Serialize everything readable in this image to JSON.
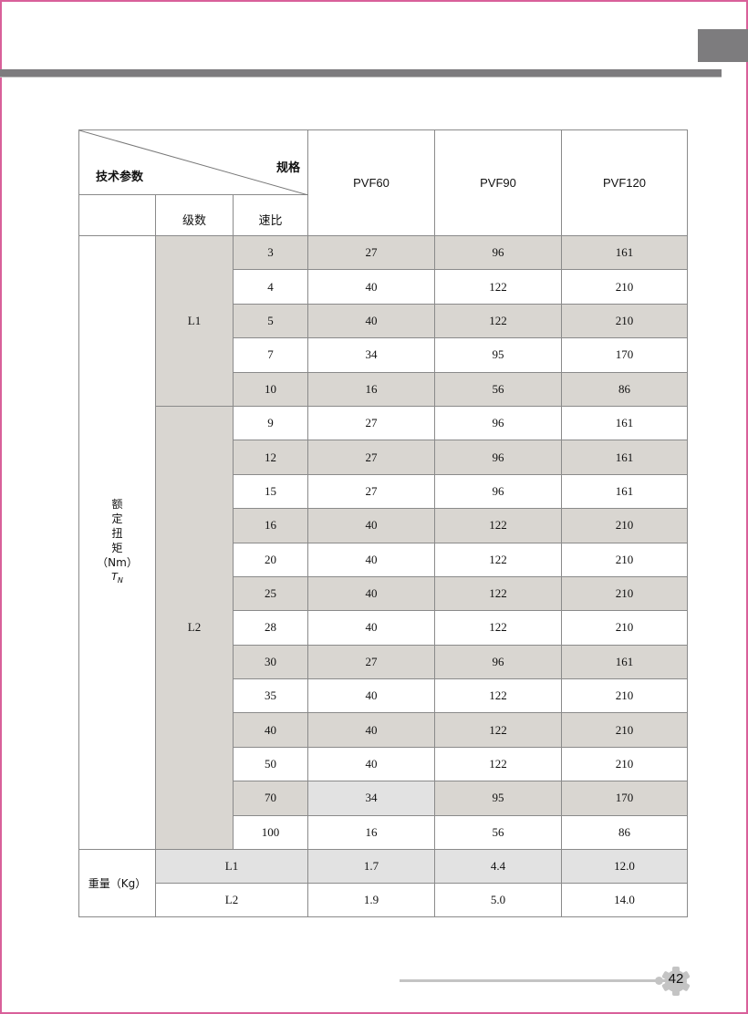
{
  "header": {
    "tech_params": "技术参数",
    "spec": "规格",
    "stage": "级数",
    "ratio": "速比",
    "models": [
      "PVF60",
      "PVF90",
      "PVF120"
    ]
  },
  "torque_label": {
    "chars": [
      "额",
      "定",
      "扭",
      "矩"
    ],
    "unit": "（Nm）",
    "symbol": "T",
    "subscript": "N"
  },
  "rows": [
    {
      "stage": "L1",
      "ratio": "3",
      "v": [
        "27",
        "96",
        "161"
      ]
    },
    {
      "ratio": "4",
      "v": [
        "40",
        "122",
        "210"
      ]
    },
    {
      "ratio": "5",
      "v": [
        "40",
        "122",
        "210"
      ]
    },
    {
      "ratio": "7",
      "v": [
        "34",
        "95",
        "170"
      ]
    },
    {
      "ratio": "10",
      "v": [
        "16",
        "56",
        "86"
      ]
    },
    {
      "stage": "L2",
      "ratio": "9",
      "v": [
        "27",
        "96",
        "161"
      ]
    },
    {
      "ratio": "12",
      "v": [
        "27",
        "96",
        "161"
      ]
    },
    {
      "ratio": "15",
      "v": [
        "27",
        "96",
        "161"
      ]
    },
    {
      "ratio": "16",
      "v": [
        "40",
        "122",
        "210"
      ]
    },
    {
      "ratio": "20",
      "v": [
        "40",
        "122",
        "210"
      ]
    },
    {
      "ratio": "25",
      "v": [
        "40",
        "122",
        "210"
      ]
    },
    {
      "ratio": "28",
      "v": [
        "40",
        "122",
        "210"
      ]
    },
    {
      "ratio": "30",
      "v": [
        "27",
        "96",
        "161"
      ]
    },
    {
      "ratio": "35",
      "v": [
        "40",
        "122",
        "210"
      ]
    },
    {
      "ratio": "40",
      "v": [
        "40",
        "122",
        "210"
      ]
    },
    {
      "ratio": "50",
      "v": [
        "40",
        "122",
        "210"
      ]
    },
    {
      "ratio": "70",
      "v": [
        "34",
        "95",
        "170"
      ]
    },
    {
      "ratio": "100",
      "v": [
        "16",
        "56",
        "86"
      ]
    }
  ],
  "weight": {
    "label": "重量（Kg）",
    "rows": [
      {
        "stage": "L1",
        "v": [
          "1.7",
          "4.4",
          "12.0"
        ]
      },
      {
        "stage": "L2",
        "v": [
          "1.9",
          "5.0",
          "14.0"
        ]
      }
    ]
  },
  "page_number": "42",
  "colors": {
    "border": "#d9609a",
    "bar": "#7d7c7e",
    "shade": "#d9d6d1",
    "light_shade": "#e2e2e2"
  }
}
